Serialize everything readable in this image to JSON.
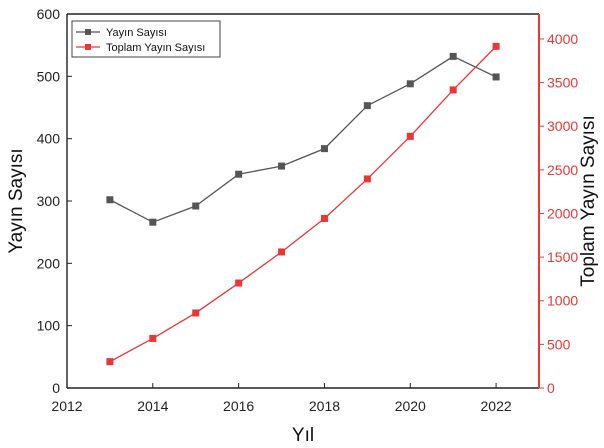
{
  "chart_data": {
    "type": "line",
    "x": [
      2013,
      2014,
      2015,
      2016,
      2017,
      2018,
      2019,
      2020,
      2021,
      2022
    ],
    "series": [
      {
        "name": "Yayın Sayısı",
        "axis": "left",
        "color": "#555555",
        "marker": "square",
        "values": [
          302,
          266,
          292,
          343,
          356,
          384,
          453,
          488,
          532,
          499
        ]
      },
      {
        "name": "Toplam Yayın Sayısı",
        "axis": "right",
        "color": "#ee3535",
        "marker": "square",
        "values": [
          302,
          568,
          860,
          1203,
          1559,
          1943,
          2396,
          2884,
          3416,
          3915
        ]
      }
    ],
    "xlabel": "Yıl",
    "ylabel_left": "Yayın Sayısı",
    "ylabel_right": "Toplam Yayın Sayısı",
    "xlim": [
      2012,
      2023
    ],
    "ylim_left": [
      0,
      600
    ],
    "ylim_right": [
      0,
      4286
    ],
    "xticks": [
      "2012",
      "2014",
      "2016",
      "2018",
      "2020",
      "2022"
    ],
    "yticks_left": [
      "0",
      "100",
      "200",
      "300",
      "400",
      "500",
      "600"
    ],
    "yticks_right": [
      "0",
      "500",
      "1000",
      "1500",
      "2000",
      "2500",
      "3000",
      "3500",
      "4000"
    ],
    "legend": "top-left",
    "grid": false,
    "right_axis_color": "#e53935"
  }
}
